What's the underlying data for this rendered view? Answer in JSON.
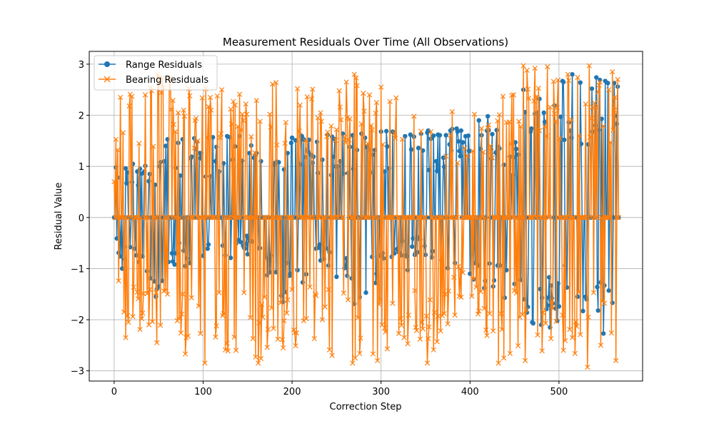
{
  "chart_data": {
    "type": "line",
    "title": "Measurement Residuals Over Time (All Observations)",
    "xlabel": "Correction Step",
    "ylabel": "Residual Value",
    "xlim": [
      -28,
      594
    ],
    "ylim": [
      -3.2,
      3.25
    ],
    "xticks": [
      0,
      100,
      200,
      300,
      400,
      500
    ],
    "yticks": [
      -3,
      -2,
      -1,
      0,
      1,
      2,
      3
    ],
    "xtick_labels": [
      "0",
      "100",
      "200",
      "300",
      "400",
      "500"
    ],
    "ytick_labels": [
      "−3",
      "−2",
      "−1",
      "0",
      "1",
      "2",
      "3"
    ],
    "grid": true,
    "legend_position": "top-left",
    "series": [
      {
        "name": "Range Residuals",
        "color": "#1f77b4",
        "marker": "circle",
        "n_points": 568,
        "envelope": [
          [
            0,
            1.0,
            -0.7
          ],
          [
            30,
            1.1,
            -1.0
          ],
          [
            50,
            1.0,
            -1.6
          ],
          [
            60,
            1.6,
            -1.0
          ],
          [
            100,
            1.6,
            -1.0
          ],
          [
            150,
            1.6,
            -0.7
          ],
          [
            190,
            1.6,
            -1.7
          ],
          [
            230,
            1.65,
            -1.0
          ],
          [
            270,
            1.7,
            -1.7
          ],
          [
            310,
            1.7,
            -1.0
          ],
          [
            350,
            1.7,
            -0.7
          ],
          [
            390,
            1.8,
            -1.2
          ],
          [
            420,
            2.0,
            -1.5
          ],
          [
            440,
            1.1,
            -1.7
          ],
          [
            460,
            2.5,
            -2.1
          ],
          [
            490,
            2.6,
            -2.2
          ],
          [
            520,
            2.8,
            -1.6
          ],
          [
            540,
            2.8,
            -2.3
          ],
          [
            567,
            2.7,
            -1.6
          ]
        ],
        "sample": [
          [
            0,
            0.0
          ],
          [
            2,
            0.98
          ],
          [
            5,
            -0.69
          ],
          [
            9,
            -1.0
          ],
          [
            13,
            0.96
          ],
          [
            25,
            -0.74
          ],
          [
            40,
            0.85
          ],
          [
            47,
            -1.55
          ],
          [
            60,
            1.53
          ],
          [
            90,
            1.55
          ],
          [
            100,
            -0.75
          ],
          [
            111,
            1.57
          ],
          [
            130,
            1.57
          ],
          [
            150,
            -0.72
          ],
          [
            190,
            -1.65
          ],
          [
            210,
            1.6
          ],
          [
            240,
            1.62
          ],
          [
            270,
            -1.69
          ],
          [
            300,
            1.68
          ],
          [
            330,
            -1.03
          ],
          [
            350,
            -0.73
          ],
          [
            390,
            1.7
          ],
          [
            410,
            1.9
          ],
          [
            420,
            1.98
          ],
          [
            430,
            1.71
          ],
          [
            460,
            2.5
          ],
          [
            470,
            -2.05
          ],
          [
            480,
            -2.1
          ],
          [
            490,
            -2.15
          ],
          [
            505,
            2.65
          ],
          [
            515,
            2.8
          ],
          [
            530,
            -1.55
          ],
          [
            550,
            -2.27
          ],
          [
            562,
            2.63
          ],
          [
            567,
            0.0
          ]
        ]
      },
      {
        "name": "Bearing Residuals",
        "color": "#ff7f0e",
        "marker": "x",
        "n_points": 568,
        "envelope": [
          [
            0,
            1.4,
            -1.0
          ],
          [
            10,
            2.35,
            -2.35
          ],
          [
            50,
            2.8,
            -2.45
          ],
          [
            100,
            2.6,
            -2.85
          ],
          [
            160,
            2.45,
            -2.85
          ],
          [
            190,
            2.75,
            -2.55
          ],
          [
            250,
            2.5,
            -2.85
          ],
          [
            270,
            2.8,
            -2.85
          ],
          [
            300,
            2.55,
            -2.8
          ],
          [
            350,
            2.5,
            -2.85
          ],
          [
            400,
            2.0,
            -1.5
          ],
          [
            430,
            2.25,
            -2.85
          ],
          [
            460,
            2.97,
            -2.8
          ],
          [
            500,
            2.95,
            -2.6
          ],
          [
            530,
            2.97,
            -2.93
          ],
          [
            567,
            2.85,
            -2.8
          ]
        ],
        "sample": [
          [
            0,
            0.7
          ],
          [
            7,
            2.35
          ],
          [
            13,
            -2.35
          ],
          [
            49,
            2.8
          ],
          [
            48,
            -2.45
          ],
          [
            102,
            -2.85
          ],
          [
            162,
            -2.85
          ],
          [
            190,
            2.75
          ],
          [
            190,
            -2.55
          ],
          [
            270,
            2.8
          ],
          [
            268,
            -2.85
          ],
          [
            300,
            2.55
          ],
          [
            296,
            -2.8
          ],
          [
            352,
            -2.85
          ],
          [
            418,
            -2.2
          ],
          [
            432,
            -2.85
          ],
          [
            460,
            2.97
          ],
          [
            462,
            -2.8
          ],
          [
            487,
            2.95
          ],
          [
            505,
            -2.6
          ],
          [
            534,
            2.97
          ],
          [
            532,
            -2.93
          ],
          [
            560,
            2.85
          ],
          [
            564,
            -2.8
          ]
        ]
      }
    ]
  }
}
